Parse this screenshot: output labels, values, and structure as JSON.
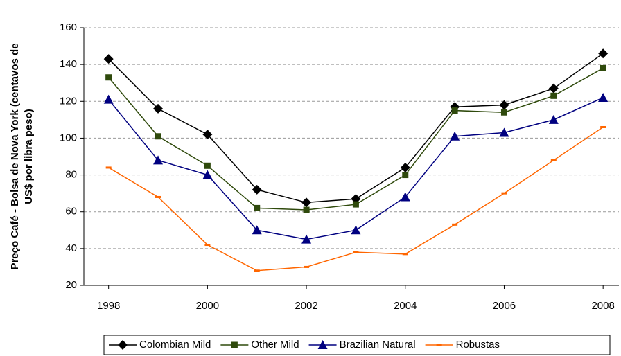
{
  "chart_data": {
    "type": "line",
    "y_label_lines": [
      "Preço Café - Bolsa de Nova York (centavos de",
      "US$ por libra peso)"
    ],
    "x": [
      1998,
      1999,
      2000,
      2001,
      2002,
      2003,
      2004,
      2005,
      2006,
      2007,
      2008
    ],
    "xlim": [
      1997.5,
      2008.32
    ],
    "xticks": [
      1998,
      2000,
      2002,
      2004,
      2006,
      2008
    ],
    "ylim": [
      20,
      160
    ],
    "yticks": [
      20,
      40,
      60,
      80,
      100,
      120,
      140,
      160
    ],
    "grid": true,
    "legend": "bottom",
    "series": [
      {
        "name": "Colombian Mild",
        "color": "#000000",
        "marker": "diamond",
        "values": [
          143,
          116,
          102,
          72,
          65,
          67,
          84,
          117,
          118,
          127,
          146
        ]
      },
      {
        "name": "Other Mild",
        "color": "#2f4a0c",
        "marker": "square",
        "values": [
          133,
          101,
          85,
          62,
          61,
          64,
          80,
          115,
          114,
          123,
          138
        ]
      },
      {
        "name": "Brazilian Natural",
        "color": "#000080",
        "marker": "triangle",
        "values": [
          121,
          88,
          80,
          50,
          45,
          50,
          68,
          101,
          103,
          110,
          122
        ]
      },
      {
        "name": "Robustas",
        "color": "#ff6600",
        "marker": "dash",
        "values": [
          84,
          68,
          42,
          28,
          30,
          38,
          37,
          53,
          70,
          88,
          106
        ]
      }
    ]
  }
}
